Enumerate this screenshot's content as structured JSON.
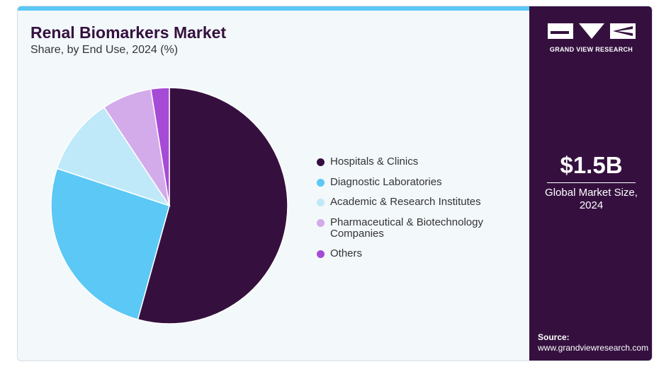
{
  "header": {
    "title": "Renal Biomarkers Market",
    "subtitle": "Share, by End Use, 2024 (%)"
  },
  "colors": {
    "accent_bar": "#5bc8f5",
    "sidebar_bg": "#35103f",
    "card_bg": "#f3f8fb",
    "title": "#35103f"
  },
  "chart_data": {
    "type": "pie",
    "start_angle": "12 o'clock",
    "direction": "clockwise",
    "categories": [
      "Hospitals & Clinics",
      "Diagnostic Laboratories",
      "Academic & Research Institutes",
      "Pharmaceutical & Biotechnology Companies",
      "Others"
    ],
    "values": [
      54.3,
      25.8,
      10.6,
      6.8,
      2.5
    ],
    "colors": [
      "#35103f",
      "#5bc8f5",
      "#bfe9f9",
      "#d3aaea",
      "#a64bd6"
    ],
    "legend_position": "right"
  },
  "legend": {
    "items": [
      {
        "label": "Hospitals & Clinics",
        "color": "#35103f"
      },
      {
        "label": "Diagnostic Laboratories",
        "color": "#5bc8f5"
      },
      {
        "label": "Academic & Research Institutes",
        "color": "#bfe9f9"
      },
      {
        "label": "Pharmaceutical & Biotechnology Companies",
        "color": "#d3aaea"
      },
      {
        "label": "Others",
        "color": "#a64bd6"
      }
    ]
  },
  "sidebar": {
    "logo_text": "GRAND VIEW RESEARCH",
    "market_value": "$1.5B",
    "market_label": "Global Market Size, 2024",
    "source_label": "Source:",
    "source_url": "www.grandviewresearch.com"
  }
}
